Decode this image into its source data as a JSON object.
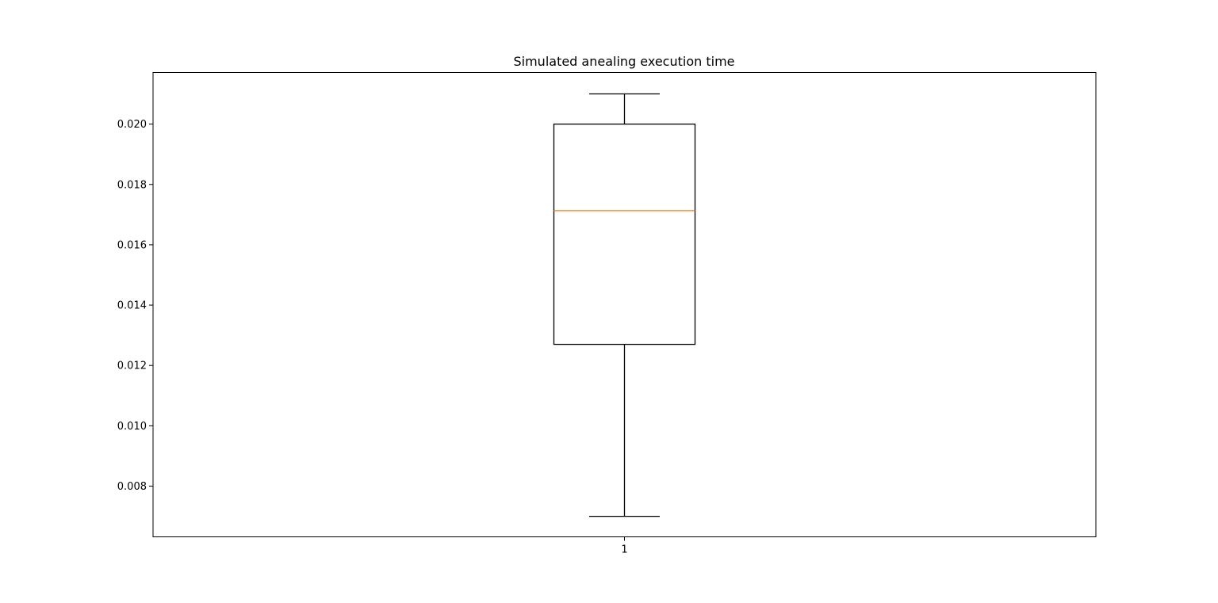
{
  "chart_data": {
    "type": "boxplot",
    "title": "Simulated anealing execution time",
    "xlabel": "",
    "ylabel": "",
    "categories": [
      "1"
    ],
    "boxes": [
      {
        "category": "1",
        "whisker_low": 0.007,
        "q1": 0.0127,
        "median": 0.01713,
        "q3": 0.02,
        "whisker_high": 0.021
      }
    ],
    "ylim": [
      0.00632,
      0.02171
    ],
    "xlim": [
      0.5,
      1.5
    ],
    "yticks": [
      0.008,
      0.01,
      0.012,
      0.014,
      0.016,
      0.018,
      0.02
    ],
    "ytick_labels": [
      "0.008",
      "0.010",
      "0.012",
      "0.014",
      "0.016",
      "0.018",
      "0.020"
    ],
    "grid": false,
    "colors": {
      "box": "#000000",
      "median": "#ff7f0e",
      "whisker": "#000000",
      "axes": "#000000"
    }
  }
}
